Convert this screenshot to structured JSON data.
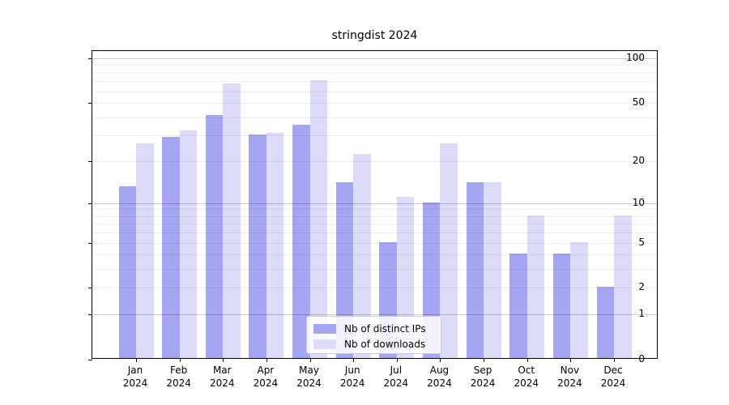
{
  "title": "stringdist 2024",
  "legend": {
    "items": [
      {
        "label": "Nb of distinct IPs",
        "color": "#a5a5f1"
      },
      {
        "label": "Nb of downloads",
        "color": "#dcdcf9"
      }
    ]
  },
  "chart_data": {
    "type": "bar",
    "title": "stringdist 2024",
    "scale": "log1p",
    "categories": [
      "Jan",
      "Feb",
      "Mar",
      "Apr",
      "May",
      "Jun",
      "Jul",
      "Aug",
      "Sep",
      "Oct",
      "Nov",
      "Dec"
    ],
    "year_label": "2024",
    "series": [
      {
        "name": "Nb of distinct IPs",
        "color": "#a5a5f1",
        "values": [
          13,
          29,
          41,
          30,
          35,
          14,
          5,
          10,
          14,
          4,
          4,
          2
        ]
      },
      {
        "name": "Nb of downloads",
        "color": "#dcdcf9",
        "values": [
          26,
          32,
          67,
          31,
          70,
          22,
          11,
          26,
          14,
          8,
          5,
          8
        ]
      }
    ],
    "yticks": [
      0,
      1,
      2,
      5,
      10,
      20,
      50,
      100
    ],
    "major_gridlines": [
      1,
      10,
      100
    ],
    "minor_gridlines": [
      2,
      3,
      4,
      5,
      6,
      7,
      8,
      9,
      20,
      30,
      40,
      50,
      60,
      70,
      80,
      90
    ],
    "ylim": [
      0,
      113
    ],
    "grid": "horizontal",
    "legend_position": "lower-center",
    "xlabel": "",
    "ylabel": ""
  }
}
